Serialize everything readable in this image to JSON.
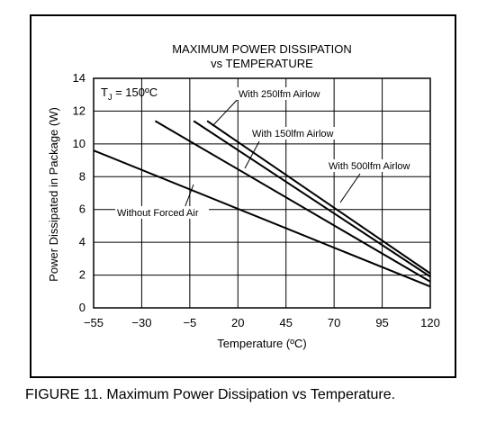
{
  "caption": "FIGURE 11. Maximum Power Dissipation vs Temperature.",
  "chart_data": {
    "type": "line",
    "title": "MAXIMUM POWER DISSIPATION",
    "subtitle": "vs TEMPERATURE",
    "xlabel": "Temperature (ºC)",
    "ylabel": "Power Dissipated in Package (W)",
    "xlim": [
      -55,
      120
    ],
    "ylim": [
      0,
      14
    ],
    "xticks": [
      "−55",
      "−30",
      "−5",
      "20",
      "45",
      "70",
      "95",
      "120"
    ],
    "xtick_values": [
      -55,
      -30,
      -5,
      20,
      45,
      70,
      95,
      120
    ],
    "yticks": [
      "0",
      "2",
      "4",
      "6",
      "8",
      "10",
      "12",
      "14"
    ],
    "ytick_values": [
      0,
      2,
      4,
      6,
      8,
      10,
      12,
      14
    ],
    "grid": true,
    "annotation": {
      "prefix": "T",
      "sub": "J",
      "suffix": " = 150ºC"
    },
    "series": [
      {
        "name": "Without Forced Air",
        "points": [
          [
            -55,
            9.6
          ],
          [
            120,
            1.3
          ]
        ]
      },
      {
        "name": "With 150lfm Airlow",
        "points": [
          [
            -23,
            11.4
          ],
          [
            120,
            1.6
          ]
        ]
      },
      {
        "name": "With 250lfm Airlow",
        "points": [
          [
            -3,
            11.4
          ],
          [
            120,
            1.9
          ]
        ]
      },
      {
        "name": "With 500lfm Airlow",
        "points": [
          [
            4,
            11.4
          ],
          [
            120,
            2.1
          ]
        ]
      }
    ],
    "labels": [
      {
        "series": 0,
        "text": "Without Forced Air"
      },
      {
        "series": 1,
        "text": "With 150lfm Airlow"
      },
      {
        "series": 2,
        "text": "With 250lfm Airlow"
      },
      {
        "series": 3,
        "text": "With 500lfm Airlow"
      }
    ],
    "line_color": "#000000"
  }
}
